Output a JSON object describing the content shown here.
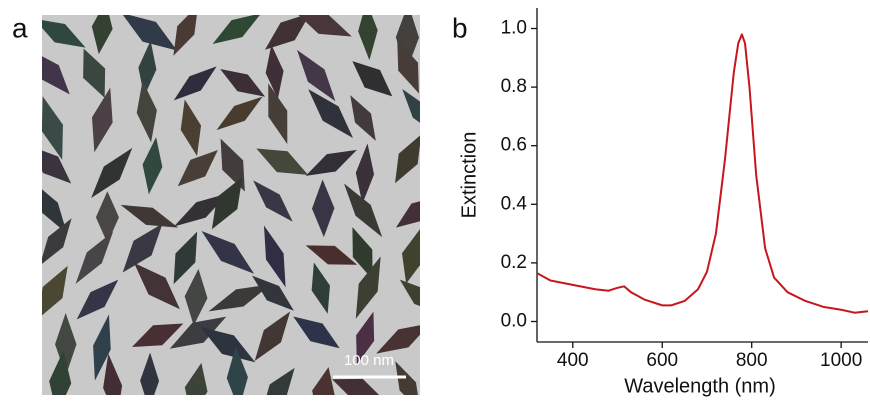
{
  "image_panel": {
    "label": "a",
    "scale_bar": "100 nm"
  },
  "chart_data": {
    "type": "line",
    "panel_label": "b",
    "x_label": "Wavelength (nm)",
    "y_label": "Extinction",
    "xlim": [
      320,
      1060
    ],
    "ylim": [
      -0.07,
      1.07
    ],
    "xticks": [
      400,
      600,
      800,
      1000
    ],
    "yticks": [
      {
        "value": 0,
        "label": "0.0"
      },
      0.2,
      0.4,
      0.6,
      0.8,
      {
        "value": 1,
        "label": "1.0"
      }
    ],
    "x": [
      320,
      350,
      400,
      450,
      480,
      500,
      515,
      530,
      560,
      600,
      620,
      650,
      680,
      700,
      720,
      740,
      760,
      770,
      778,
      785,
      795,
      810,
      830,
      850,
      880,
      920,
      960,
      1000,
      1030,
      1060
    ],
    "series": [
      {
        "color": "#c8161d",
        "values": [
          0.165,
          0.14,
          0.125,
          0.11,
          0.105,
          0.115,
          0.12,
          0.1,
          0.075,
          0.055,
          0.055,
          0.07,
          0.11,
          0.17,
          0.3,
          0.55,
          0.85,
          0.95,
          0.98,
          0.95,
          0.8,
          0.5,
          0.25,
          0.15,
          0.1,
          0.07,
          0.05,
          0.04,
          0.03,
          0.035
        ]
      }
    ]
  }
}
